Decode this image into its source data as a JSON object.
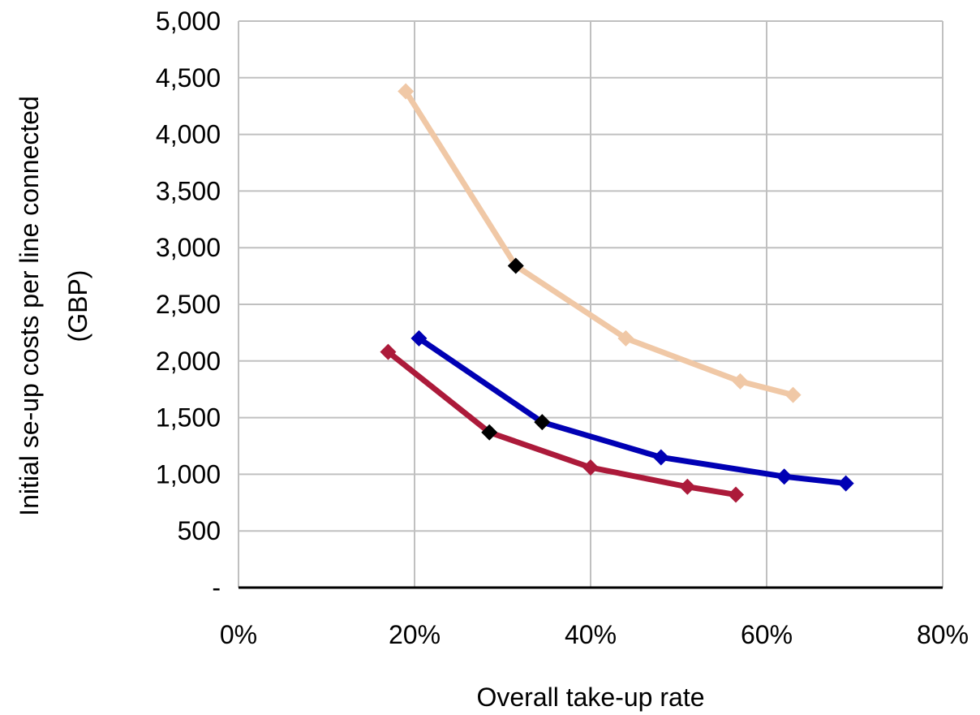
{
  "chart_data": {
    "type": "line",
    "title": "",
    "xlabel": "Overall take-up rate",
    "ylabel_lines": [
      "Initial se-up costs per line connected",
      "(GBP)"
    ],
    "xlim": [
      0,
      0.8
    ],
    "ylim": [
      0,
      5000
    ],
    "x_ticks": [
      0,
      0.2,
      0.4,
      0.6,
      0.8
    ],
    "x_tick_labels": [
      "0%",
      "20%",
      "40%",
      "60%",
      "80%"
    ],
    "y_ticks": [
      0,
      500,
      1000,
      1500,
      2000,
      2500,
      3000,
      3500,
      4000,
      4500,
      5000
    ],
    "y_tick_labels": [
      "-",
      "500",
      "1,000",
      "1,500",
      "2,000",
      "2,500",
      "3,000",
      "3,500",
      "4,000",
      "4,500",
      "5,000"
    ],
    "grid": true,
    "legend": "none",
    "series": [
      {
        "color": "#f0c8a6",
        "points": [
          [
            0.19,
            4380
          ],
          [
            0.315,
            2840
          ],
          [
            0.44,
            2200
          ],
          [
            0.57,
            1820
          ],
          [
            0.63,
            1700
          ]
        ],
        "highlight_index": 1
      },
      {
        "color": "#0000b4",
        "points": [
          [
            0.205,
            2200
          ],
          [
            0.345,
            1460
          ],
          [
            0.48,
            1150
          ],
          [
            0.62,
            980
          ],
          [
            0.69,
            920
          ]
        ],
        "highlight_index": 1
      },
      {
        "color": "#ac1a3a",
        "points": [
          [
            0.17,
            2080
          ],
          [
            0.285,
            1370
          ],
          [
            0.4,
            1060
          ],
          [
            0.51,
            890
          ],
          [
            0.565,
            820
          ]
        ],
        "highlight_index": 1
      }
    ],
    "highlight_color": "#000000"
  }
}
